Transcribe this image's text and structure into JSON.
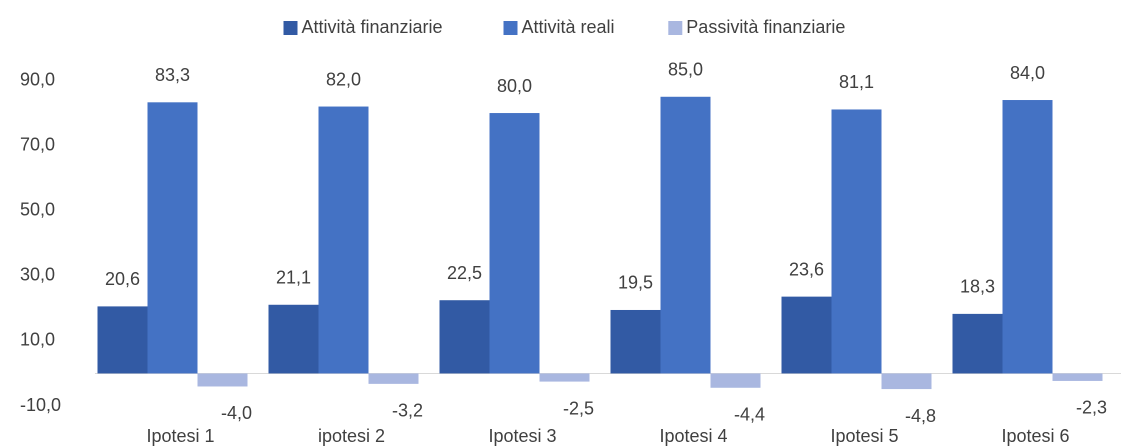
{
  "chart_data": {
    "type": "bar",
    "categories": [
      "Ipotesi 1",
      "ipotesi 2",
      "Ipotesi 3",
      "Ipotesi 4",
      "Ipotesi 5",
      "Ipotesi 6"
    ],
    "series": [
      {
        "name": "Attività finanziarie",
        "color": "#325aa4",
        "values": [
          20.6,
          21.1,
          22.5,
          19.5,
          23.6,
          18.3
        ],
        "value_labels": [
          "20,6",
          "21,1",
          "22,5",
          "19,5",
          "23,6",
          "18,3"
        ]
      },
      {
        "name": "Attività reali",
        "color": "#4472c4",
        "values": [
          83.3,
          82.0,
          80.0,
          85.0,
          81.1,
          84.0
        ],
        "value_labels": [
          "83,3",
          "82,0",
          "80,0",
          "85,0",
          "81,1",
          "84,0"
        ]
      },
      {
        "name": "Passività finanziarie",
        "color": "#a9b7e0",
        "values": [
          -4.0,
          -3.2,
          -2.5,
          -4.4,
          -4.8,
          -2.3
        ],
        "value_labels": [
          "-4,0",
          "-3,2",
          "-2,5",
          "-4,4",
          "-4,8",
          "-2,3"
        ]
      }
    ],
    "ylim": [
      -10,
      90
    ],
    "yticks": [
      {
        "value": -10,
        "label": "-10,0"
      },
      {
        "value": 10,
        "label": "10,0"
      },
      {
        "value": 30,
        "label": "30,0"
      },
      {
        "value": 50,
        "label": "50,0"
      },
      {
        "value": 70,
        "label": "70,0"
      },
      {
        "value": 90,
        "label": "90,0"
      }
    ],
    "legend": "top"
  }
}
